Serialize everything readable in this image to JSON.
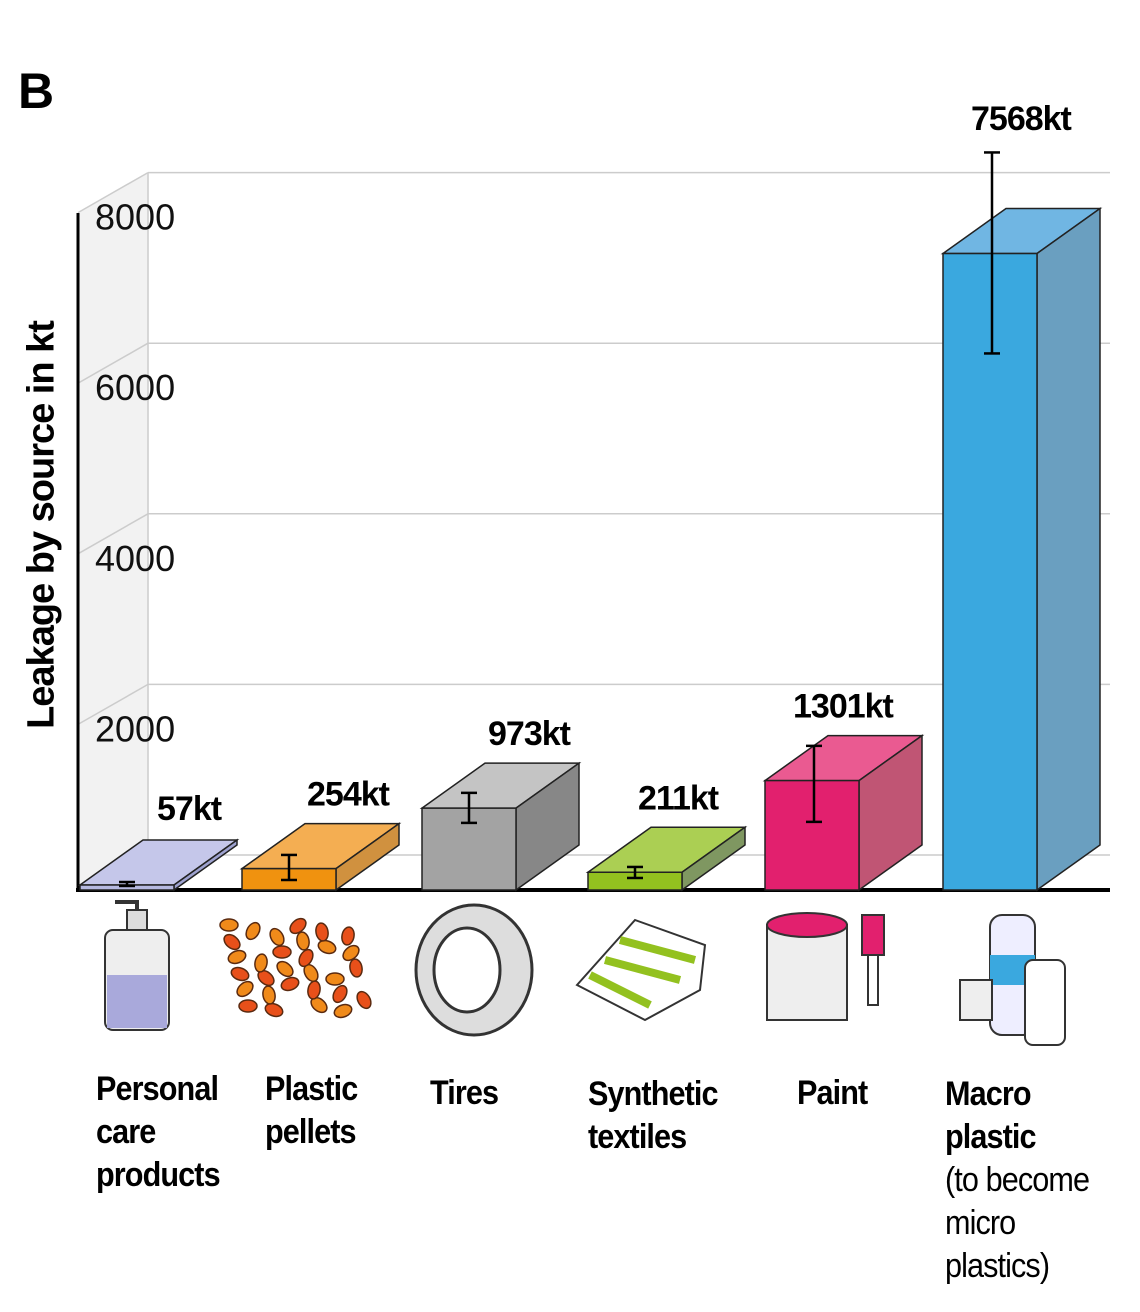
{
  "chart_data": {
    "type": "bar",
    "panel_label": "B",
    "ylabel": "Leakage by source in kt",
    "ylim": [
      0,
      8000
    ],
    "yticks": [
      "2000",
      "4000",
      "6000",
      "8000"
    ],
    "grid": true,
    "categories": [
      "Personal care products",
      "Plastic pellets",
      "Tires",
      "Synthetic textiles",
      "Paint",
      "Macro plastic"
    ],
    "category_notes": [
      "",
      "",
      "",
      "",
      "",
      "(to become micro plastics)"
    ],
    "values": [
      57,
      254,
      973,
      211,
      1301,
      7568
    ],
    "value_labels": [
      "57kt",
      "254kt",
      "973kt",
      "211kt",
      "1301kt",
      "7568kt"
    ],
    "error_low": [
      48,
      119,
      798,
      143,
      810,
      6380
    ],
    "error_high": [
      95,
      417,
      1155,
      274,
      1714,
      8770
    ],
    "colors": [
      {
        "front": "#b6b9e0",
        "top": "#c5c7ea",
        "side": "#9ea2cf"
      },
      {
        "front": "#f0920f",
        "top": "#f4ae52",
        "side": "#d0913f"
      },
      {
        "front": "#a3a3a3",
        "top": "#c4c4c4",
        "side": "#878787"
      },
      {
        "front": "#93c11f",
        "top": "#abcf53",
        "side": "#7f9761"
      },
      {
        "front": "#e2206e",
        "top": "#ea5a91",
        "side": "#c05574"
      },
      {
        "front": "#3aa8df",
        "top": "#70b6e3",
        "side": "#6a9fc0"
      }
    ],
    "icons": [
      "soap-dispenser-icon",
      "plastic-pellets-icon",
      "tire-icon",
      "folded-shirt-icon",
      "paint-can-icon",
      "plastic-bottles-icon"
    ]
  }
}
